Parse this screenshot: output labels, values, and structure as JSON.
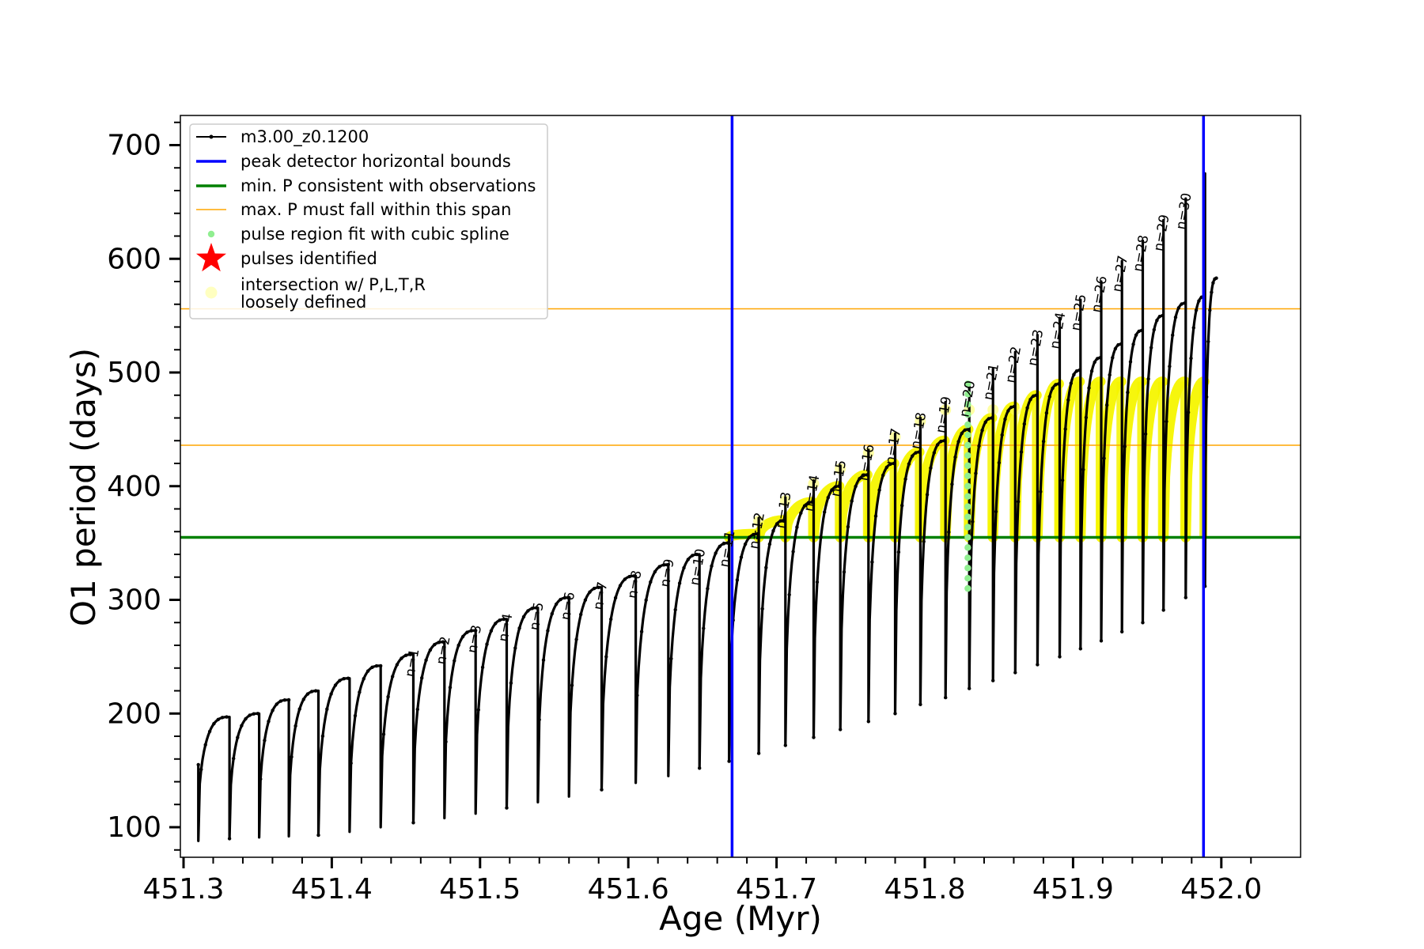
{
  "chart_data": {
    "type": "line",
    "xlabel": "Age (Myr)",
    "ylabel": "O1 period (days)",
    "xlim": [
      451.295,
      452.03
    ],
    "ylim": [
      72,
      725
    ],
    "x_ticks": [
      "451.3",
      "451.4",
      "451.5",
      "451.6",
      "451.7",
      "451.8",
      "451.9",
      "452.0"
    ],
    "x_tick_values": [
      451.3,
      451.4,
      451.5,
      451.6,
      451.7,
      451.8,
      451.9,
      452.0
    ],
    "y_ticks": [
      "100",
      "200",
      "300",
      "400",
      "500",
      "600",
      "700"
    ],
    "y_tick_values": [
      100,
      200,
      300,
      400,
      500,
      600,
      700
    ],
    "legend": {
      "placement": "upper-left",
      "entries": [
        {
          "label": "m3.00_z0.1200",
          "color": "#000000",
          "style": "line-dot"
        },
        {
          "label": "peak detector horizontal bounds",
          "color": "#0000ff",
          "style": "line"
        },
        {
          "label": "min. P consistent with observations",
          "color": "#008000",
          "style": "line"
        },
        {
          "label": "max. P must fall within this span",
          "color": "#ffa500",
          "style": "line"
        },
        {
          "label": "pulse region fit with cubic spline",
          "color": "#90ee90",
          "style": "dot"
        },
        {
          "label": "pulses identified",
          "color": "#ff0000",
          "style": "star"
        },
        {
          "label": "intersection w/ P,L,T,R\nloosely defined",
          "color": "#ffffc0",
          "style": "dot"
        }
      ]
    },
    "reference_lines": {
      "peak_detector_bounds_x": [
        451.67,
        451.988
      ],
      "min_P": 355,
      "max_P_span": [
        436,
        556
      ]
    },
    "series_name": "m3.00_z0.1200",
    "start_age": 451.31,
    "start_period": 155,
    "end": {
      "x": 451.997,
      "y": 583
    },
    "pulses": [
      {
        "x": 451.331,
        "peak": 197,
        "min": 90
      },
      {
        "x": 451.351,
        "peak": 200,
        "min": 91
      },
      {
        "x": 451.371,
        "peak": 212,
        "min": 92
      },
      {
        "x": 451.391,
        "peak": 220,
        "min": 93
      },
      {
        "x": 451.412,
        "peak": 231,
        "min": 96
      },
      {
        "x": 451.433,
        "peak": 242,
        "min": 100
      },
      {
        "x": 451.455,
        "peak": 252,
        "min": 104,
        "label": "n=1"
      },
      {
        "x": 451.476,
        "peak": 263,
        "min": 108,
        "label": "n=2"
      },
      {
        "x": 451.497,
        "peak": 273,
        "min": 112,
        "label": "n=3"
      },
      {
        "x": 451.518,
        "peak": 283,
        "min": 117,
        "label": "n=4"
      },
      {
        "x": 451.539,
        "peak": 293,
        "min": 122,
        "label": "n=5"
      },
      {
        "x": 451.56,
        "peak": 302,
        "min": 127,
        "label": "n=6"
      },
      {
        "x": 451.582,
        "peak": 311,
        "min": 133,
        "label": "n=7"
      },
      {
        "x": 451.605,
        "peak": 321,
        "min": 139,
        "label": "n=8"
      },
      {
        "x": 451.627,
        "peak": 331,
        "min": 145,
        "label": "n=9"
      },
      {
        "x": 451.648,
        "peak": 340,
        "min": 152,
        "label": "n=10"
      },
      {
        "x": 451.668,
        "peak": 350,
        "min": 158,
        "label": "n=11"
      },
      {
        "x": 451.688,
        "peak": 358,
        "min": 165,
        "label": "n=12"
      },
      {
        "x": 451.706,
        "peak": 370,
        "min": 172,
        "label": "n=13"
      },
      {
        "x": 451.725,
        "peak": 386,
        "min": 179,
        "label": "n=14"
      },
      {
        "x": 451.743,
        "peak": 400,
        "min": 186,
        "label": "n=15"
      },
      {
        "x": 451.762,
        "peak": 410,
        "min": 193,
        "label": "n=16"
      },
      {
        "x": 451.78,
        "peak": 420,
        "min": 200,
        "label": "n=17"
      },
      {
        "x": 451.797,
        "peak": 430,
        "min": 208,
        "label": "n=18"
      },
      {
        "x": 451.814,
        "peak": 440,
        "min": 214,
        "label": "n=19"
      },
      {
        "x": 451.83,
        "peak": 450,
        "min": 222,
        "label": "n=20"
      },
      {
        "x": 451.846,
        "peak": 460,
        "min": 229,
        "label": "n=21"
      },
      {
        "x": 451.861,
        "peak": 470,
        "min": 236,
        "label": "n=22"
      },
      {
        "x": 451.876,
        "peak": 480,
        "min": 243,
        "label": "n=23"
      },
      {
        "x": 451.891,
        "peak": 490,
        "min": 250,
        "label": "n=24"
      },
      {
        "x": 451.905,
        "peak": 502,
        "min": 257,
        "label": "n=25"
      },
      {
        "x": 451.919,
        "peak": 513,
        "min": 264,
        "label": "n=26"
      },
      {
        "x": 451.933,
        "peak": 525,
        "min": 272,
        "label": "n=27"
      },
      {
        "x": 451.947,
        "peak": 537,
        "min": 280,
        "label": "n=28"
      },
      {
        "x": 451.961,
        "peak": 550,
        "min": 291,
        "label": "n=29"
      },
      {
        "x": 451.976,
        "peak": 561,
        "min": 302,
        "label": "n=30"
      },
      {
        "x": 451.989,
        "peak": 567,
        "min": 312
      }
    ],
    "spikes": [
      {
        "x": 451.668,
        "top": 356
      },
      {
        "x": 451.688,
        "top": 372
      },
      {
        "x": 451.706,
        "top": 390
      },
      {
        "x": 451.725,
        "top": 405
      },
      {
        "x": 451.743,
        "top": 418
      },
      {
        "x": 451.762,
        "top": 432
      },
      {
        "x": 451.78,
        "top": 446
      },
      {
        "x": 451.797,
        "top": 460
      },
      {
        "x": 451.814,
        "top": 474
      },
      {
        "x": 451.83,
        "top": 488
      },
      {
        "x": 451.846,
        "top": 503
      },
      {
        "x": 451.861,
        "top": 518
      },
      {
        "x": 451.876,
        "top": 533
      },
      {
        "x": 451.891,
        "top": 548
      },
      {
        "x": 451.905,
        "top": 564
      },
      {
        "x": 451.919,
        "top": 580
      },
      {
        "x": 451.933,
        "top": 598
      },
      {
        "x": 451.947,
        "top": 616
      },
      {
        "x": 451.961,
        "top": 634
      },
      {
        "x": 451.976,
        "top": 653
      },
      {
        "x": 451.989,
        "top": 675
      }
    ],
    "spline_region": {
      "x": 451.829,
      "y_range": [
        310,
        490
      ]
    }
  }
}
